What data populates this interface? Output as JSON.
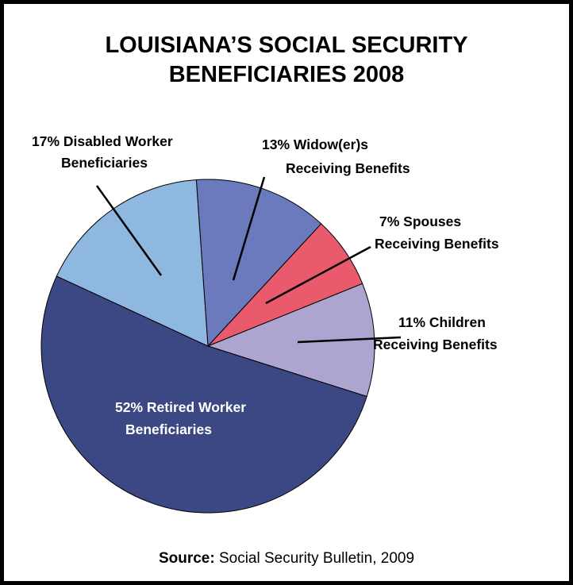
{
  "chart_data": {
    "type": "pie",
    "title_lines": [
      "LOUISIANA’S SOCIAL SECURITY",
      "BENEFICIARIES 2008"
    ],
    "slices": [
      {
        "label_lines": [
          "13% Widow(er)s",
          "Receiving Benefits"
        ],
        "value": 13,
        "color": "#6b79bd"
      },
      {
        "label_lines": [
          "7% Spouses",
          "Receiving Benefits"
        ],
        "value": 7,
        "color": "#e85a6c"
      },
      {
        "label_lines": [
          "11% Children",
          "Receiving Benefits"
        ],
        "value": 11,
        "color": "#ada4cf"
      },
      {
        "label_lines": [
          "52% Retired Worker",
          "Beneficiaries"
        ],
        "value": 52,
        "color": "#3b4884"
      },
      {
        "label_lines": [
          "17% Disabled Worker",
          "Beneficiaries"
        ],
        "value": 17,
        "color": "#8fb8e0"
      }
    ]
  },
  "source": {
    "label": "Source:",
    "text": " Social Security Bulletin, 2009"
  }
}
